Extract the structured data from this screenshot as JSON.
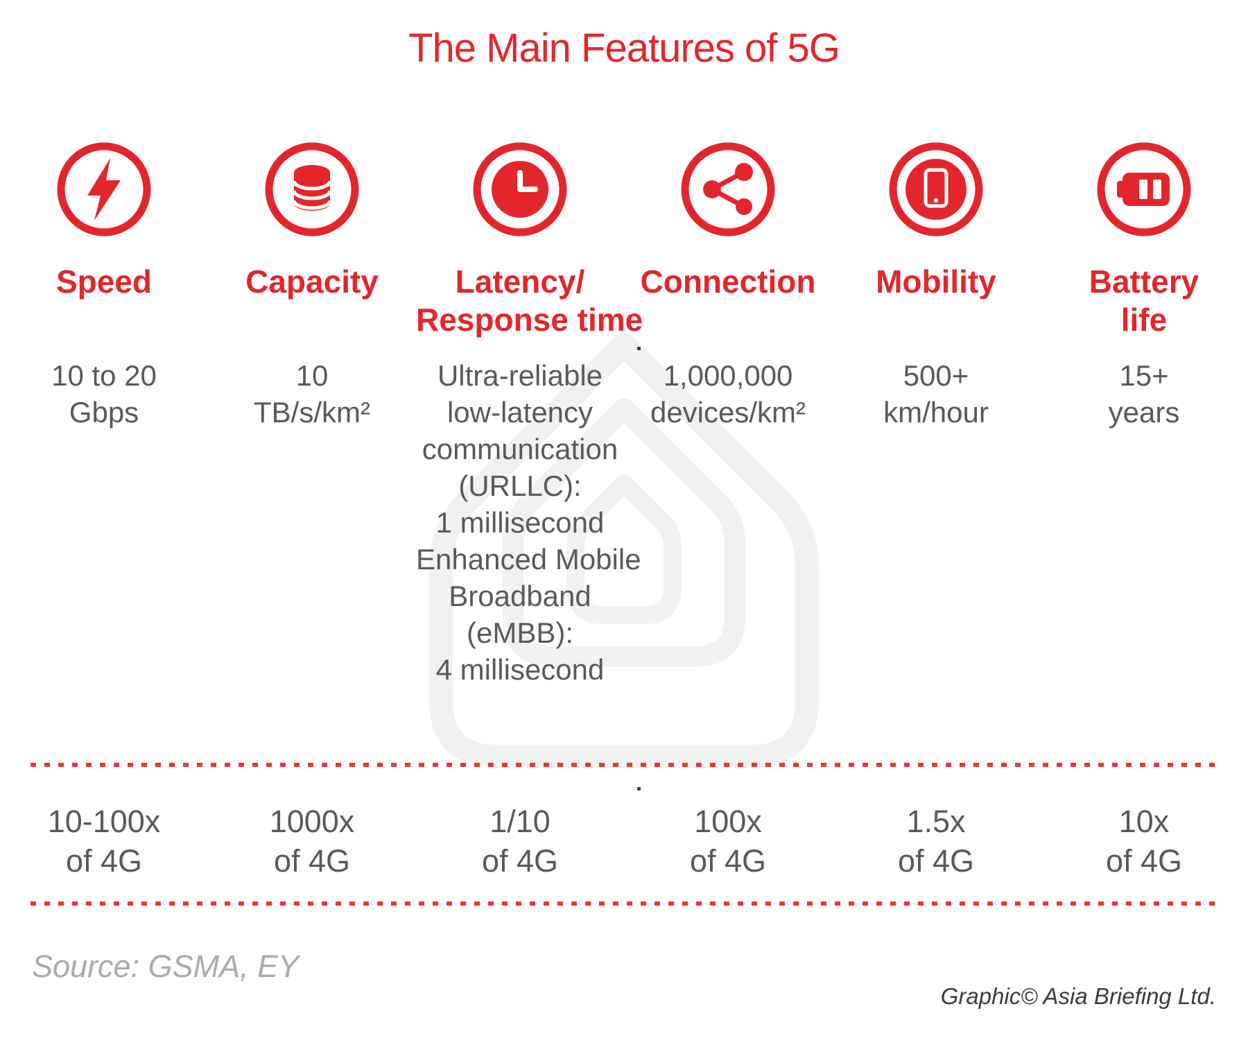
{
  "title": "The Main Features of 5G",
  "source": "Source: GSMA, EY",
  "credit": "Graphic© Asia Briefing Ltd.",
  "colors": {
    "accent_red": "#e3262c",
    "dotted_line_red": "#e8382f",
    "value_gray": "#58595b",
    "source_gray": "#a8aaac",
    "credit_dark": "#3c3c3e",
    "watermark_gray": "#f1f1f1"
  },
  "features": [
    {
      "icon": "lightning-icon",
      "label_lines": [
        "Speed"
      ],
      "value_lines": [
        "10 to 20",
        "Gbps"
      ],
      "comparison_lines": [
        "10-100x",
        "of 4G"
      ]
    },
    {
      "icon": "database-icon",
      "label_lines": [
        "Capacity"
      ],
      "value_lines": [
        "10",
        "TB/s/km²"
      ],
      "comparison_lines": [
        "1000x",
        "of 4G"
      ]
    },
    {
      "icon": "clock-icon",
      "label_lines": [
        "Latency/",
        "Response time"
      ],
      "value_lines": [
        "Ultra-reliable",
        "low-latency",
        "communication",
        "(URLLC):",
        "1 millisecond",
        "Enhanced Mobile",
        "Broadband",
        "(eMBB):",
        "4 millisecond"
      ],
      "comparison_lines": [
        "1/10",
        "of 4G"
      ]
    },
    {
      "icon": "share-icon",
      "label_lines": [
        "Connection"
      ],
      "value_lines": [
        "1,000,000",
        "devices/km²"
      ],
      "comparison_lines": [
        "100x",
        "of 4G"
      ]
    },
    {
      "icon": "smartphone-icon",
      "label_lines": [
        "Mobility"
      ],
      "value_lines": [
        "500+",
        "km/hour"
      ],
      "comparison_lines": [
        "1.5x",
        "of 4G"
      ]
    },
    {
      "icon": "battery-icon",
      "label_lines": [
        "Battery",
        "life"
      ],
      "value_lines": [
        "15+",
        "years"
      ],
      "comparison_lines": [
        "10x",
        "of 4G"
      ]
    }
  ]
}
